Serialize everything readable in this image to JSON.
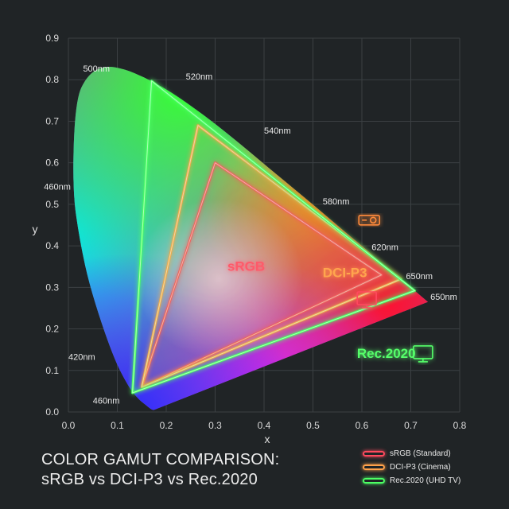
{
  "chart_data": {
    "type": "scatter",
    "title_lines": [
      "COLOR GAMUT COMPARISON:",
      "sRGB vs DCI-P3 vs Rec.2020"
    ],
    "xlabel": "x",
    "ylabel": "y",
    "xlim": [
      0.0,
      0.8
    ],
    "ylim": [
      0.0,
      0.9
    ],
    "xticks": [
      "0.0",
      "0.1",
      "0.2",
      "0.3",
      "0.4",
      "0.5",
      "0.6",
      "0.7",
      "0.8"
    ],
    "yticks": [
      "0.0",
      "0.1",
      "0.2",
      "0.3",
      "0.4",
      "0.5",
      "0.6",
      "0.7",
      "0.8",
      "0.9"
    ],
    "grid": true,
    "spectral_locus": [
      [
        0.175,
        0.005
      ],
      [
        0.172,
        0.005
      ],
      [
        0.166,
        0.009
      ],
      [
        0.155,
        0.02
      ],
      [
        0.144,
        0.03
      ],
      [
        0.124,
        0.058
      ],
      [
        0.091,
        0.133
      ],
      [
        0.045,
        0.295
      ],
      [
        0.023,
        0.413
      ],
      [
        0.008,
        0.538
      ],
      [
        0.014,
        0.75
      ],
      [
        0.039,
        0.812
      ],
      [
        0.074,
        0.834
      ],
      [
        0.114,
        0.826
      ],
      [
        0.155,
        0.806
      ],
      [
        0.193,
        0.782
      ],
      [
        0.23,
        0.754
      ],
      [
        0.266,
        0.724
      ],
      [
        0.302,
        0.692
      ],
      [
        0.337,
        0.659
      ],
      [
        0.373,
        0.624
      ],
      [
        0.408,
        0.589
      ],
      [
        0.444,
        0.554
      ],
      [
        0.479,
        0.52
      ],
      [
        0.512,
        0.487
      ],
      [
        0.545,
        0.454
      ],
      [
        0.575,
        0.424
      ],
      [
        0.603,
        0.397
      ],
      [
        0.627,
        0.372
      ],
      [
        0.648,
        0.351
      ],
      [
        0.666,
        0.334
      ],
      [
        0.68,
        0.32
      ],
      [
        0.691,
        0.308
      ],
      [
        0.701,
        0.299
      ],
      [
        0.735,
        0.265
      ]
    ],
    "wavelength_labels": [
      {
        "label": "500nm",
        "x": 0.03,
        "y": 0.82
      },
      {
        "label": "520nm",
        "x": 0.24,
        "y": 0.8
      },
      {
        "label": "540nm",
        "x": 0.4,
        "y": 0.67
      },
      {
        "label": "580nm",
        "x": 0.52,
        "y": 0.5
      },
      {
        "label": "620nm",
        "x": 0.62,
        "y": 0.39
      },
      {
        "label": "650nm",
        "x": 0.69,
        "y": 0.32
      },
      {
        "label": "650nm",
        "x": 0.74,
        "y": 0.27
      },
      {
        "label": "460nm",
        "x": -0.05,
        "y": 0.535
      },
      {
        "label": "420nm",
        "x": 0.0,
        "y": 0.125
      },
      {
        "label": "460nm",
        "x": 0.05,
        "y": 0.02
      }
    ],
    "series": [
      {
        "name": "sRGB (Standard)",
        "label": "sRGB",
        "color": "#ff4a5e",
        "points": [
          [
            0.64,
            0.33
          ],
          [
            0.3,
            0.6
          ],
          [
            0.15,
            0.06
          ]
        ]
      },
      {
        "name": "DCI-P3 (Cinema)",
        "label": "DCI-P3",
        "color": "#ffa24a",
        "points": [
          [
            0.68,
            0.32
          ],
          [
            0.265,
            0.69
          ],
          [
            0.15,
            0.06
          ]
        ]
      },
      {
        "name": "Rec.2020 (UHD TV)",
        "label": "Rec.2020",
        "color": "#4cff64",
        "points": [
          [
            0.708,
            0.292
          ],
          [
            0.17,
            0.797
          ],
          [
            0.131,
            0.046
          ]
        ]
      }
    ],
    "series_labels": [
      {
        "label": "sRGB",
        "x": 0.325,
        "y": 0.34,
        "color": "#ff5a6a"
      },
      {
        "label": "DCI-P3",
        "x": 0.52,
        "y": 0.325,
        "color": "#ffa54e"
      },
      {
        "label": "Rec.2020",
        "x": 0.59,
        "y": 0.13,
        "color": "#55ff6a"
      }
    ],
    "icons": [
      {
        "name": "projector-icon",
        "x": 0.615,
        "y": 0.46,
        "color": "#ff8a3a"
      },
      {
        "name": "monitor-icon",
        "x": 0.61,
        "y": 0.27,
        "color": "#ff4a5e"
      },
      {
        "name": "tv-icon",
        "x": 0.725,
        "y": 0.14,
        "color": "#55ff6a"
      }
    ],
    "legend_placement": "bottom-right"
  }
}
